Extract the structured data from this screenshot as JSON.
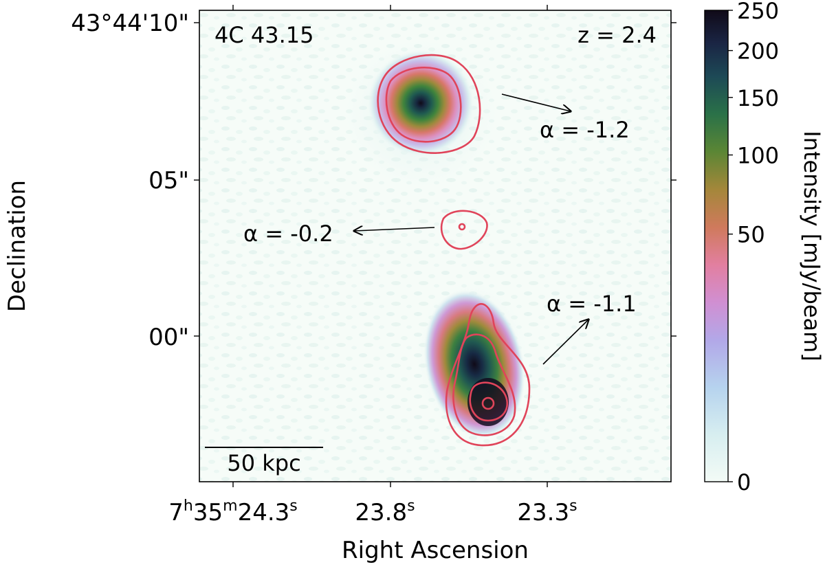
{
  "figure": {
    "source_name": "4C 43.15",
    "redshift_label": "z = 2.4",
    "scale_bar_label": "50 kpc",
    "xlabel": "Right Ascension",
    "ylabel": "Declination"
  },
  "axes": {
    "dec_ticks": [
      "43°44'10\"",
      "05\"",
      "00\""
    ],
    "ra_ticks": [
      {
        "h": "7",
        "h_sup": "h",
        "m": "35",
        "m_sup": "m",
        "s": "24.3",
        "s_sup": "s"
      },
      {
        "s": "23.8",
        "s_sup": "s"
      },
      {
        "s": "23.3",
        "s_sup": "s"
      }
    ]
  },
  "annotations": {
    "north_lobe_alpha": "α = -1.2",
    "core_alpha": "α = -0.2",
    "south_lobe_alpha": "α = -1.1"
  },
  "colorbar": {
    "label": "Intensity [mJy/beam]",
    "ticks": [
      "250",
      "200",
      "150",
      "100",
      "50",
      "0"
    ],
    "tick_values": [
      250,
      200,
      150,
      100,
      50,
      0
    ],
    "colors": [
      "#f3fbf6",
      "#cbe8ee",
      "#aab9ea",
      "#c79be4",
      "#df86b4",
      "#d8766d",
      "#b98344",
      "#7c8a33",
      "#2f7d43",
      "#1e4f53",
      "#1b2a44",
      "#120c1c"
    ]
  },
  "colors": {
    "contour": "#e0445a",
    "frame": "#000000"
  }
}
